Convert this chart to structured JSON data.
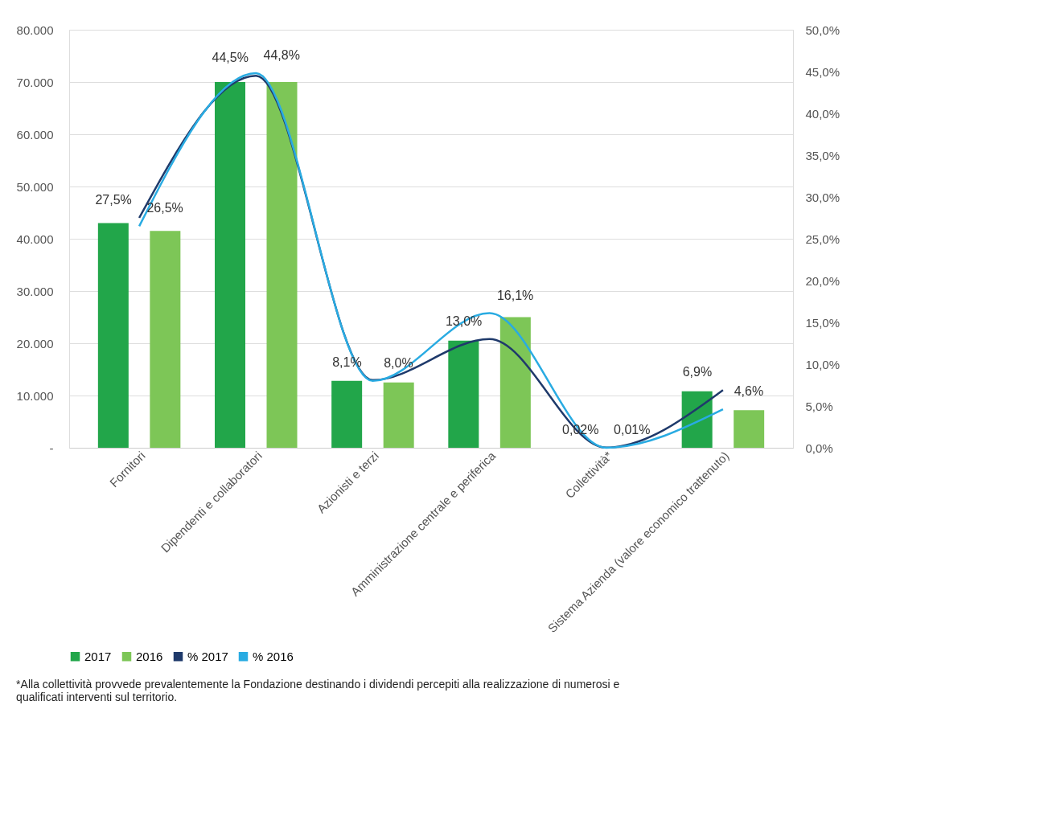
{
  "chart_data": {
    "type": "bar",
    "categories": [
      "Fornitori",
      "Dipendenti e collaboratori",
      "Azionisti e terzi",
      "Amministrazione centrale e periferica",
      "Collettività*",
      "Sistema Azienda (valore economico trattenuto)"
    ],
    "series": [
      {
        "name": "2017",
        "color": "#22a64a",
        "values": [
          43000,
          70000,
          12800,
          20500,
          0,
          10800
        ]
      },
      {
        "name": "2016",
        "color": "#7dc657",
        "values": [
          41500,
          70000,
          12500,
          25000,
          0,
          7200
        ]
      },
      {
        "name": "% 2017",
        "type": "line",
        "axis": "y2",
        "color": "#1f3a6b",
        "values": [
          27.5,
          44.5,
          8.1,
          13.0,
          0.02,
          6.9
        ],
        "value_labels": [
          "27,5%",
          "44,5%",
          "8,1%",
          "13,0%",
          "0,02%",
          "6,9%"
        ]
      },
      {
        "name": "% 2016",
        "type": "line",
        "axis": "y2",
        "color": "#29abe2",
        "values": [
          26.5,
          44.8,
          8.0,
          16.1,
          0.01,
          4.6
        ],
        "value_labels": [
          "26,5%",
          "44,8%",
          "8,0%",
          "16,1%",
          "0,01%",
          "4,6%"
        ]
      }
    ],
    "ylim": [
      0,
      80000
    ],
    "yticks": [
      {
        "value": 0,
        "label": "-"
      },
      {
        "value": 10000,
        "label": "10.000"
      },
      {
        "value": 20000,
        "label": "20.000"
      },
      {
        "value": 30000,
        "label": "30.000"
      },
      {
        "value": 40000,
        "label": "40.000"
      },
      {
        "value": 50000,
        "label": "50.000"
      },
      {
        "value": 60000,
        "label": "60.000"
      },
      {
        "value": 70000,
        "label": "70.000"
      },
      {
        "value": 80000,
        "label": "80.000"
      }
    ],
    "y2lim": [
      0,
      50
    ],
    "y2ticks": [
      {
        "value": 0,
        "label": "0,0%"
      },
      {
        "value": 5,
        "label": "5,0%"
      },
      {
        "value": 10,
        "label": "10,0%"
      },
      {
        "value": 15,
        "label": "15,0%"
      },
      {
        "value": 20,
        "label": "20,0%"
      },
      {
        "value": 25,
        "label": "25,0%"
      },
      {
        "value": 30,
        "label": "30,0%"
      },
      {
        "value": 35,
        "label": "35,0%"
      },
      {
        "value": 40,
        "label": "40,0%"
      },
      {
        "value": 45,
        "label": "45,0%"
      },
      {
        "value": 50,
        "label": "50,0%"
      }
    ],
    "grid": "y",
    "legend": "bottom",
    "annotations": [
      "*Alla collettività provvede prevalentemente la Fondazione destinando i dividendi percepiti alla realizzazione di numerosi e qualificati interventi sul territorio."
    ]
  }
}
